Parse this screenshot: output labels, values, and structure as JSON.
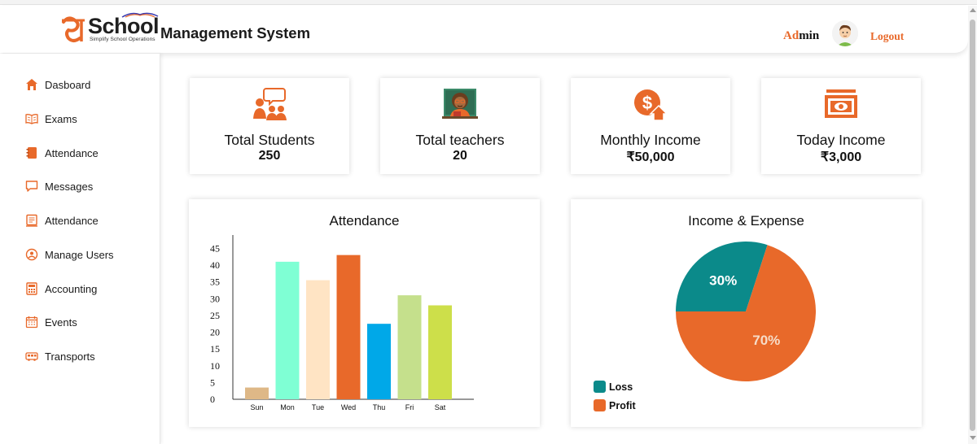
{
  "header": {
    "logo_word": "School",
    "logo_tagline": "Simplify School Operations",
    "title": "Management System",
    "admin_prefix": "Ad",
    "admin_suffix": "min",
    "logout_label": "Logout",
    "accent_color": "#e8692a"
  },
  "sidebar": {
    "items": [
      {
        "label": "Dasboard",
        "icon": "home-icon"
      },
      {
        "label": "Exams",
        "icon": "book-icon"
      },
      {
        "label": "Attendance",
        "icon": "notebook-icon"
      },
      {
        "label": "Messages",
        "icon": "message-icon"
      },
      {
        "label": "Attendance",
        "icon": "clipboard-icon"
      },
      {
        "label": "Manage Users",
        "icon": "users-icon"
      },
      {
        "label": "Accounting",
        "icon": "calculator-icon"
      },
      {
        "label": "Events",
        "icon": "calendar-icon"
      },
      {
        "label": "Transports",
        "icon": "bus-icon"
      }
    ]
  },
  "stats": [
    {
      "title": "Total Students",
      "value": "250",
      "icon": "students-icon"
    },
    {
      "title": "Total teachers",
      "value": "20",
      "icon": "teacher-icon"
    },
    {
      "title": "Monthly Income",
      "value": "₹50,000",
      "icon": "income-icon"
    },
    {
      "title": "Today Income",
      "value": "₹3,000",
      "icon": "money-icon"
    }
  ],
  "chart_data": [
    {
      "type": "bar",
      "title": "Attendance",
      "categories": [
        "Sun",
        "Mon",
        "Tue",
        "Wed",
        "Thu",
        "Fri",
        "Sat"
      ],
      "values": [
        3.5,
        41,
        35.5,
        43,
        22.5,
        31,
        28
      ],
      "colors": [
        "#deb887",
        "#7fffd4",
        "#ffe4c4",
        "#e8692a",
        "#00a8e8",
        "#c5e08c",
        "#cddf4a"
      ],
      "yticks": [
        "0",
        "5",
        "10",
        "15",
        "20",
        "25",
        "30",
        "35",
        "40",
        "45"
      ],
      "ylim": [
        0,
        48
      ],
      "xlabel": "",
      "ylabel": "",
      "grid": false
    },
    {
      "type": "pie",
      "title": "Income & Expense",
      "labels": [
        "Loss",
        "Profit"
      ],
      "values": [
        30,
        70
      ],
      "value_labels": [
        "30%",
        "70%"
      ],
      "colors": [
        "#0b8a8a",
        "#e8692a"
      ],
      "legend": "bottom-left"
    }
  ]
}
